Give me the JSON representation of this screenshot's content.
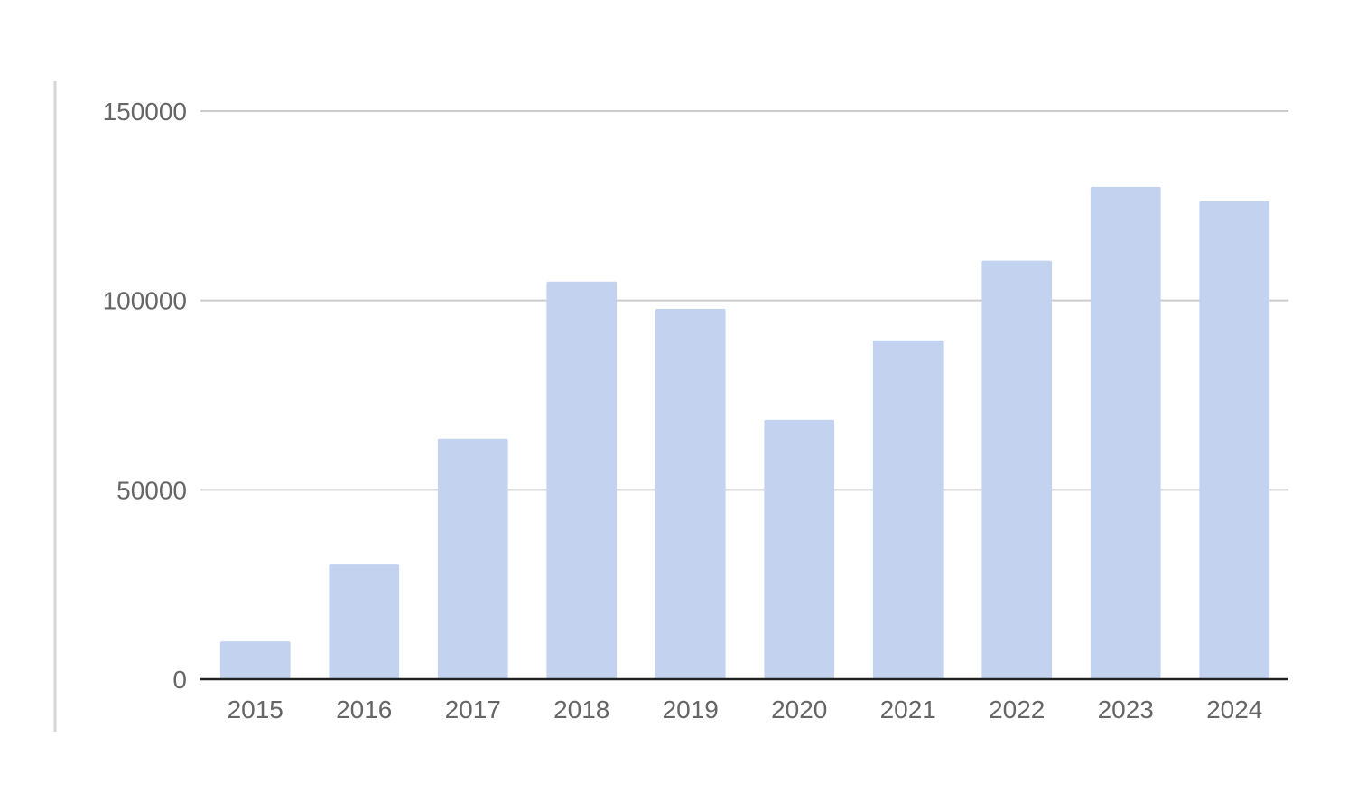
{
  "chart_data": {
    "type": "bar",
    "categories": [
      "2015",
      "2016",
      "2017",
      "2018",
      "2019",
      "2020",
      "2021",
      "2022",
      "2023",
      "2024"
    ],
    "values": [
      10000,
      30500,
      63500,
      105000,
      97800,
      68500,
      89500,
      110500,
      130000,
      126200
    ],
    "title": "",
    "xlabel": "",
    "ylabel": "",
    "ylim": [
      0,
      150000
    ],
    "yticks": [
      "0",
      "50000",
      "100000",
      "150000"
    ],
    "grid": true,
    "legend": "none",
    "colors": {
      "bar": "#c3d2ef",
      "grid": "#cccccc",
      "baseline": "#222222",
      "tick_text": "#666666",
      "frame_line": "#d5d5d5"
    }
  }
}
